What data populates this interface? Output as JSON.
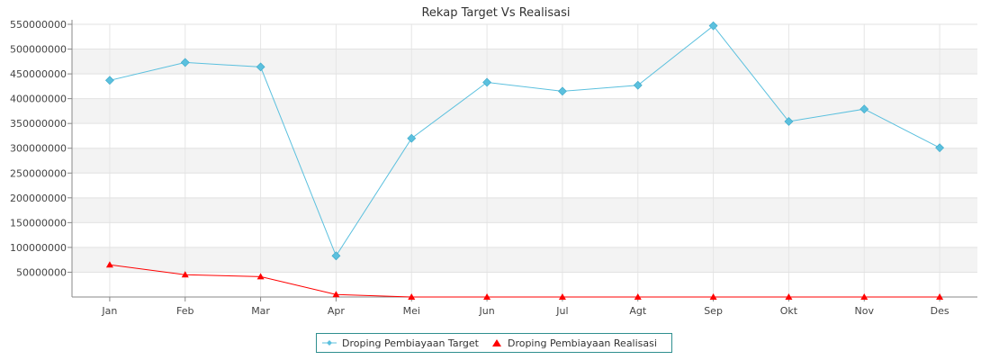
{
  "chart_data": {
    "type": "line",
    "title": "Rekap Target Vs Realisasi",
    "xlabel": "",
    "ylabel": "",
    "categories": [
      "Jan",
      "Feb",
      "Mar",
      "Apr",
      "Mei",
      "Jun",
      "Jul",
      "Agt",
      "Sep",
      "Okt",
      "Nov",
      "Des"
    ],
    "ylim": [
      0,
      550000000
    ],
    "yticks": [
      50000000,
      100000000,
      150000000,
      200000000,
      250000000,
      300000000,
      350000000,
      400000000,
      450000000,
      500000000,
      550000000
    ],
    "ytick_labels": [
      "50000000",
      "100000000",
      "150000000",
      "200000000",
      "250000000",
      "300000000",
      "350000000",
      "400000000",
      "450000000",
      "500000000",
      "550000000"
    ],
    "series": [
      {
        "name": "Droping Pembiayaan Target",
        "color": "#5bc0de",
        "marker": "diamond",
        "values": [
          437000000,
          473000000,
          464000000,
          83000000,
          320000000,
          433000000,
          415000000,
          427000000,
          547000000,
          354000000,
          379000000,
          301000000
        ]
      },
      {
        "name": "Droping Pembiayaan Realisasi",
        "color": "#ff0000",
        "marker": "triangle",
        "values": [
          65000000,
          45000000,
          41000000,
          5000000,
          0,
          0,
          0,
          0,
          0,
          0,
          0,
          0
        ]
      }
    ],
    "grid": true,
    "legend_position": "bottom-center"
  }
}
